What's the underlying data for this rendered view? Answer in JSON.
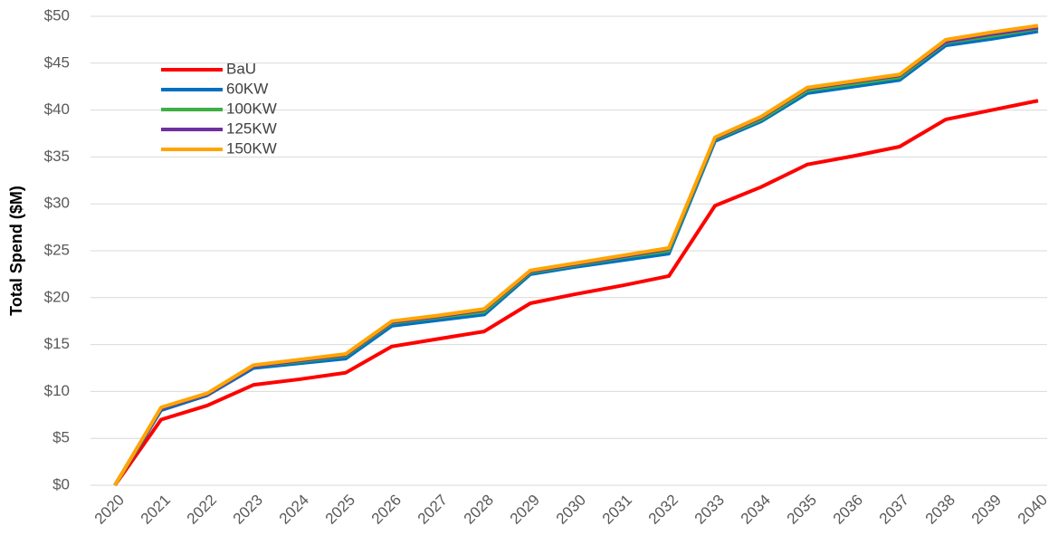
{
  "chart_data": {
    "type": "line",
    "y_label": "Total Spend ($M)",
    "categories": [
      "2020",
      "2021",
      "2022",
      "2023",
      "2024",
      "2025",
      "2026",
      "2027",
      "2028",
      "2029",
      "2030",
      "2031",
      "2032",
      "2033",
      "2034",
      "2035",
      "2036",
      "2037",
      "2038",
      "2039",
      "2040"
    ],
    "series": [
      {
        "name": "BaU",
        "color": "#ff0000",
        "values": [
          0,
          7.0,
          8.5,
          10.7,
          11.3,
          12.0,
          14.8,
          15.6,
          16.4,
          19.4,
          20.4,
          21.3,
          22.3,
          29.8,
          31.8,
          34.2,
          35.1,
          36.1,
          39.0,
          40.0,
          41.0
        ]
      },
      {
        "name": "60KW",
        "color": "#0070c0",
        "values": [
          0,
          8.0,
          9.6,
          12.5,
          13.0,
          13.5,
          17.0,
          17.6,
          18.2,
          22.5,
          23.3,
          24.0,
          24.7,
          36.7,
          38.8,
          41.8,
          42.5,
          43.2,
          46.9,
          47.6,
          48.4
        ]
      },
      {
        "name": "100KW",
        "color": "#3cb043",
        "values": [
          0,
          8.2,
          9.7,
          12.7,
          13.2,
          13.8,
          17.3,
          17.9,
          18.5,
          22.7,
          23.5,
          24.3,
          25.0,
          36.9,
          39.0,
          42.1,
          42.8,
          43.5,
          47.2,
          47.9,
          48.7
        ]
      },
      {
        "name": "125KW",
        "color": "#7030a0",
        "values": [
          0,
          8.2,
          9.7,
          12.7,
          13.3,
          13.9,
          17.4,
          18.0,
          18.7,
          22.8,
          23.6,
          24.4,
          25.2,
          37.0,
          39.2,
          42.3,
          43.0,
          43.7,
          47.3,
          48.1,
          48.8
        ]
      },
      {
        "name": "150KW",
        "color": "#ffa500",
        "values": [
          0,
          8.3,
          9.8,
          12.8,
          13.4,
          14.0,
          17.5,
          18.1,
          18.8,
          22.9,
          23.7,
          24.5,
          25.3,
          37.1,
          39.3,
          42.4,
          43.1,
          43.8,
          47.5,
          48.3,
          49.0
        ]
      }
    ],
    "ylim": [
      0,
      50
    ],
    "yticks": [
      {
        "value": 0,
        "label": "$0"
      },
      {
        "value": 5,
        "label": "$5"
      },
      {
        "value": 10,
        "label": "$10"
      },
      {
        "value": 15,
        "label": "$15"
      },
      {
        "value": 20,
        "label": "$20"
      },
      {
        "value": 25,
        "label": "$25"
      },
      {
        "value": 30,
        "label": "$30"
      },
      {
        "value": 35,
        "label": "$35"
      },
      {
        "value": 40,
        "label": "$40"
      },
      {
        "value": 45,
        "label": "$45"
      },
      {
        "value": 50,
        "label": "$50"
      }
    ],
    "grid": true
  }
}
